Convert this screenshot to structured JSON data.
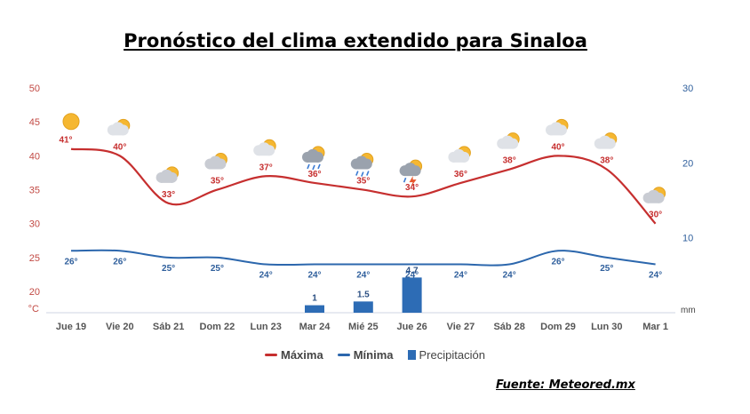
{
  "title": "Pronóstico del clima extendido para Sinaloa",
  "source": "Fuente: Meteored.mx",
  "colors": {
    "max": "#c62f2f",
    "min": "#2c67ad",
    "precip": "#2d6cb5",
    "axisLeft": "#c24a44",
    "axisRight": "#2f5f9c"
  },
  "chart_data": {
    "type": "line",
    "categories": [
      "Jue 19",
      "Vie 20",
      "Sáb 21",
      "Dom 22",
      "Lun 23",
      "Mar 24",
      "Mié 25",
      "Jue 26",
      "Vie 27",
      "Sáb 28",
      "Dom 29",
      "Lun 30",
      "Mar 1"
    ],
    "series": [
      {
        "name": "Máxima",
        "values": [
          41,
          40,
          33,
          35,
          37,
          36,
          35,
          34,
          36,
          38,
          40,
          38,
          30
        ],
        "labels": [
          "41°",
          "40°",
          "33°",
          "35°",
          "37°",
          "36°",
          "35°",
          "34°",
          "36°",
          "38°",
          "40°",
          "38°",
          "30°"
        ]
      },
      {
        "name": "Mínima",
        "values": [
          26,
          26,
          25,
          25,
          24,
          24,
          24,
          24,
          24,
          24,
          26,
          25,
          24
        ],
        "labels": [
          "26°",
          "26°",
          "25°",
          "25°",
          "24°",
          "24°",
          "24°",
          "24°",
          "24°",
          "24°",
          "26°",
          "25°",
          "24°"
        ]
      },
      {
        "name": "Precipitación",
        "type": "bar",
        "values": [
          null,
          null,
          null,
          null,
          null,
          1,
          1.5,
          4.7,
          null,
          null,
          null,
          null,
          null
        ],
        "labels": [
          "",
          "",
          "",
          "",
          "",
          "1",
          "1.5",
          "4.7",
          "",
          "",
          "",
          "",
          ""
        ]
      }
    ],
    "y_left": {
      "unit": "°C",
      "ticks": [
        "50",
        "45",
        "40",
        "35",
        "30",
        "25",
        "20"
      ],
      "range": [
        17,
        50
      ]
    },
    "y_right": {
      "unit": "mm",
      "ticks": [
        "30",
        "20",
        "10"
      ],
      "range": [
        0,
        30
      ]
    },
    "icons": [
      "sun-icon",
      "sun-cloud-icon",
      "partly-cloudy-icon",
      "partly-cloudy-icon",
      "sun-cloud-icon",
      "rain-icon",
      "rain-icon",
      "storm-icon",
      "sun-cloud-icon",
      "sun-cloud-icon",
      "sun-cloud-icon",
      "sun-cloud-icon",
      "partly-cloudy-icon"
    ],
    "legend_position": "bottom-center",
    "grid": false
  }
}
